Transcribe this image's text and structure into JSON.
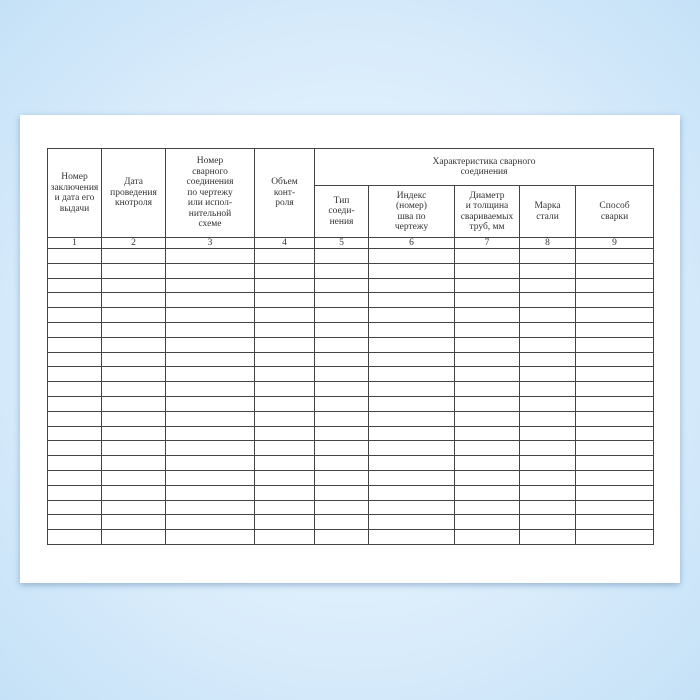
{
  "table": {
    "columns": [
      "Номер\nзаключения\nи дата его\nвыдачи",
      "Дата\nпроведения\nкнотроля",
      "Номер\nсварного\nсоединения\nпо чертежу\nили испол-\nнительной\nсхеме",
      "Объем\nконт-\nроля"
    ],
    "group_header": "Характеристика сварного\nсоединения",
    "sub_columns": [
      "Тип\nсоеди-\nнения",
      "Индекс\n(номер)\nшва по\nчертежу",
      "Диаметр\nи толщина\nсвариваемых\nтруб, мм",
      "Марка\nстали",
      "Способ\nсварки"
    ],
    "column_numbers": [
      "1",
      "2",
      "3",
      "4",
      "5",
      "6",
      "7",
      "8",
      "9"
    ],
    "empty_rows": 20
  }
}
